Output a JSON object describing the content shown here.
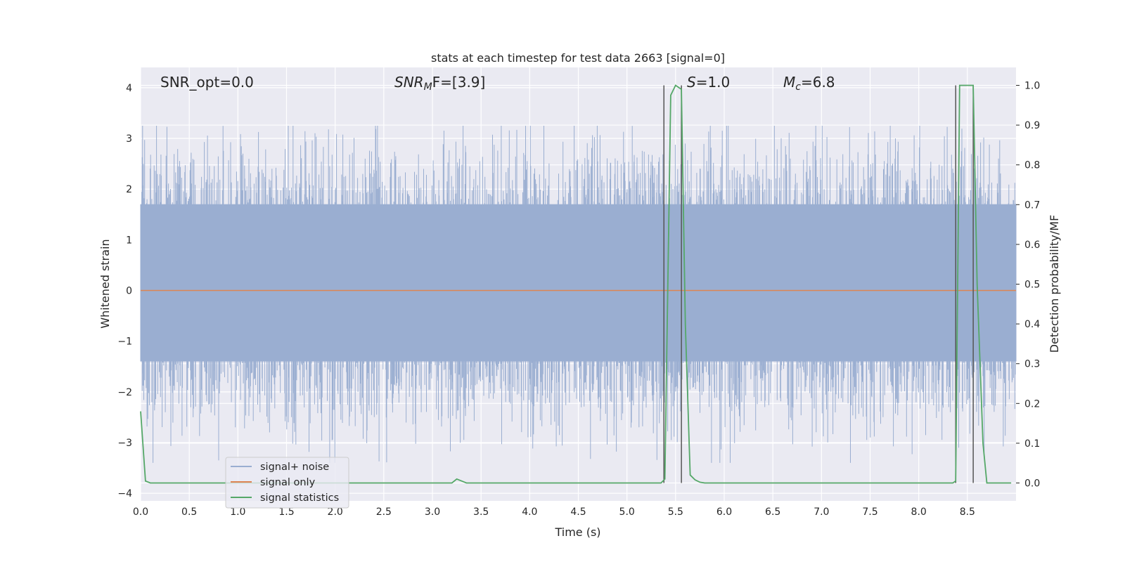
{
  "chart_data": {
    "type": "line",
    "title": "stats at each timestep for test data 2663 [signal=0]",
    "xlabel": "Time (s)",
    "ylabel": "Whitened strain",
    "y2label": "Detection probability/MF",
    "xlim": [
      0.0,
      9.0
    ],
    "ylim": [
      -4.15,
      4.4
    ],
    "y2lim": [
      -0.045,
      1.045
    ],
    "x_ticks": [
      "0.0",
      "0.5",
      "1.0",
      "1.5",
      "2.0",
      "2.5",
      "3.0",
      "3.5",
      "4.0",
      "4.5",
      "5.0",
      "5.5",
      "6.0",
      "6.5",
      "7.0",
      "7.5",
      "8.0",
      "8.5"
    ],
    "y_ticks": [
      "4",
      "3",
      "2",
      "1",
      "0",
      "−1",
      "−2",
      "−3",
      "−4"
    ],
    "y2_ticks": [
      "1.0",
      "0.9",
      "0.8",
      "0.7",
      "0.6",
      "0.5",
      "0.4",
      "0.3",
      "0.2",
      "0.1",
      "0.0"
    ],
    "annotations": {
      "snr_opt": "SNR_opt=0.0",
      "snr_mf_main": "SNR",
      "snr_mf_sub": "M",
      "snr_mf_rest": "F=[3.9]",
      "s_main": "S",
      "s_rest": "=1.0",
      "mc_main": "M",
      "mc_sub": "c",
      "mc_rest": "=6.8"
    },
    "legend": {
      "position": "lower-left",
      "entries": [
        "signal+ noise",
        "signal only",
        "signal statistics"
      ]
    },
    "colors": {
      "signal_noise": "#9aaed1",
      "signal_only": "#dd8452",
      "signal_statistics": "#55a868",
      "markers": "#555555",
      "plot_bg": "#eaeaf2",
      "grid": "#ffffff"
    },
    "series": [
      {
        "name": "signal+ noise",
        "axis": "left",
        "description_kind": "noise",
        "core_band": [
          -1.4,
          1.7
        ],
        "peak_envelope": [
          -3.4,
          3.25
        ]
      },
      {
        "name": "signal only",
        "axis": "left",
        "x": [
          0.0,
          9.0
        ],
        "y": [
          0.0,
          0.0
        ]
      },
      {
        "name": "signal statistics",
        "axis": "right",
        "x": [
          0.0,
          0.05,
          0.1,
          0.15,
          3.2,
          3.25,
          3.3,
          3.35,
          3.4,
          5.35,
          5.39,
          5.45,
          5.5,
          5.56,
          5.6,
          5.65,
          5.7,
          5.75,
          5.8,
          5.85,
          8.35,
          8.38,
          8.42,
          8.46,
          8.5,
          8.56,
          8.6,
          8.66,
          8.7,
          8.95
        ],
        "y": [
          0.18,
          0.005,
          0.0,
          0.0,
          0.0,
          0.01,
          0.005,
          0.0,
          0.0,
          0.0,
          0.01,
          0.975,
          1.0,
          0.99,
          0.4,
          0.02,
          0.008,
          0.002,
          0.0,
          0.0,
          0.0,
          0.005,
          1.0,
          1.0,
          1.0,
          1.0,
          0.5,
          0.1,
          0.0,
          0.0
        ]
      }
    ],
    "vertical_markers_x": [
      5.38,
      5.56,
      8.38,
      8.56
    ]
  }
}
